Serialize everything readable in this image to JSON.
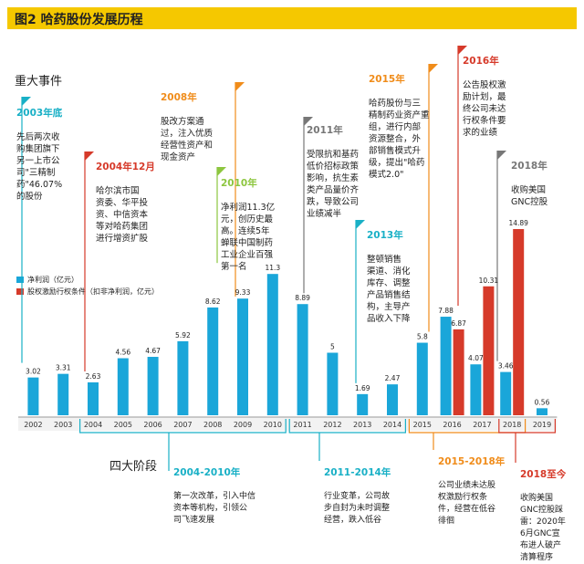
{
  "title": "图2  哈药股份发展历程",
  "sections": {
    "events": "重大事件",
    "stages": "四大阶段"
  },
  "colors": {
    "bar_blue": "#1aa6d9",
    "bar_red": "#d63a2a",
    "title_bg": "#f5c800",
    "orange": "#f08c1a",
    "green": "#8dc63f",
    "teal": "#19b0c6",
    "gray": "#777777",
    "red": "#d63a2a"
  },
  "chart_data": {
    "type": "bar",
    "categories": [
      "2002",
      "2003",
      "2004",
      "2005",
      "2006",
      "2007",
      "2008",
      "2009",
      "2010",
      "2011",
      "2012",
      "2013",
      "2014",
      "2015",
      "2016",
      "2017",
      "2018",
      "2019"
    ],
    "series": [
      {
        "name": "净利润（亿元）",
        "color": "#1aa6d9",
        "values": [
          3.02,
          3.31,
          2.63,
          4.56,
          4.67,
          5.92,
          8.62,
          9.33,
          11.3,
          8.89,
          5,
          1.69,
          2.47,
          5.8,
          7.88,
          4.07,
          3.46,
          0.56
        ],
        "labels": [
          "3.02",
          "3.31",
          "2.63",
          "4.56",
          "4.67",
          "5.92",
          "8.62",
          "9.33",
          "11.3",
          "8.89",
          "5",
          "1.69",
          "2.47",
          "5.8",
          "7.88",
          "4.07",
          "3.46",
          "0.56"
        ]
      },
      {
        "name": "股权激励行权条件（扣非净利润，亿元）",
        "color": "#d63a2a",
        "values": [
          null,
          null,
          null,
          null,
          null,
          null,
          null,
          null,
          null,
          null,
          null,
          null,
          null,
          null,
          6.87,
          10.31,
          14.89,
          null
        ],
        "labels": [
          "",
          "",
          "",
          "",
          "",
          "",
          "",
          "",
          "",
          "",
          "",
          "",
          "",
          "",
          "6.87",
          "10.31",
          "14.89",
          ""
        ]
      }
    ],
    "ylim": [
      0,
      16
    ]
  },
  "events": [
    {
      "year": "2003年底",
      "text": "先后两次收\n购集团旗下\n另一上市公\n司\"三精制\n药\"46.07%\n的股份",
      "color": "#19b0c6",
      "year_index": 1
    },
    {
      "year": "2004年12月",
      "text": "哈尔滨市国\n资委、华平投\n资、中信资本\n等对哈药集团\n进行增资扩股",
      "color": "#d63a2a",
      "year_index": 2
    },
    {
      "year": "2008年",
      "text": "股改方案通\n过，注入优质\n经营性资产和\n现金资产",
      "color": "#f08c1a",
      "year_index": 6
    },
    {
      "year": "2010年",
      "text": "净利润11.3亿\n元，创历史最\n高。连续5年\n蝉联中国制药\n工业企业百强\n第一名",
      "color": "#8dc63f",
      "year_index": 8
    },
    {
      "year": "2011年",
      "text": "受限抗和基药\n低价招标政策\n影响，抗生素\n类产品量价齐\n跌，导致公司\n业绩减半",
      "color": "#777777",
      "year_index": 9
    },
    {
      "year": "2013年",
      "text": "整顿销售\n渠道、消化\n库存、调整\n产品销售结\n构，主导产\n品收入下降",
      "color": "#19b0c6",
      "year_index": 11
    },
    {
      "year": "2015年",
      "text": "哈药股份与三\n精制药业资产重\n组，进行内部\n资源整合，外\n部销售模式升\n级，提出\"哈药\n模式2.0\"",
      "color": "#f08c1a",
      "year_index": 13
    },
    {
      "year": "2016年",
      "text": "公告股权激\n励计划，最\n终公司未达\n行权条件要\n求的业绩",
      "color": "#d63a2a",
      "year_index": 14
    },
    {
      "year": "2018年",
      "text": "收购美国\nGNC控股",
      "color": "#777777",
      "year_index": 16
    }
  ],
  "stages": [
    {
      "year": "2004-2010年",
      "text": "第一次改革，引入中信\n资本等机构，引领公\n司飞速发展",
      "color": "#19b0c6"
    },
    {
      "year": "2011-2014年",
      "text": "行业变革，公司故\n步自封为未时调整\n经营，跌入低谷",
      "color": "#19b0c6"
    },
    {
      "year": "2015-2018年",
      "text": "公司业绩未达股\n权激励行权条\n件，经营在低谷\n徘徊",
      "color": "#f08c1a"
    },
    {
      "year": "2018至今",
      "text": "收购美国\nGNC控股踩\n雷：2020年\n6月GNC宣\n布进人破产\n清算程序",
      "color": "#d63a2a"
    }
  ]
}
